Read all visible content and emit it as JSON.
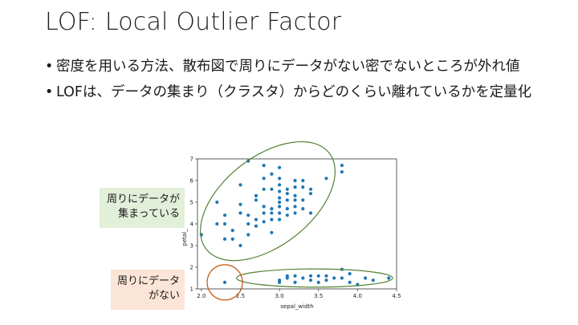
{
  "title": "LOF: Local Outlier Factor",
  "bullets": [
    "密度を用いる方法、散布図で周りにデータがない密でないところが外れ値",
    "LOFは、データの集まり（クラスタ）からどのくらい離れているかを定量化"
  ],
  "callouts": {
    "dense": [
      "周りにデータが",
      "集まっている"
    ],
    "sparse": [
      "周りにデータ",
      "がない"
    ]
  },
  "colors": {
    "points": "#1f77b4",
    "cluster_ellipse": "#548235",
    "outlier_circle": "#c55a11",
    "callout_dense_bg": "#e2efd9",
    "callout_sparse_bg": "#fbe5d6"
  },
  "chart_data": {
    "type": "scatter",
    "xlabel": "sepal_width",
    "ylabel": "petal_",
    "xlim": [
      1.95,
      4.5
    ],
    "ylim": [
      1.0,
      7.0
    ],
    "xticks": [
      "2.0",
      "2.5",
      "3.0",
      "3.5",
      "4.0",
      "4.5"
    ],
    "xtick_values": [
      2.0,
      2.5,
      3.0,
      3.5,
      4.0,
      4.5
    ],
    "yticks": [
      "1",
      "2",
      "3",
      "4",
      "5",
      "6",
      "7"
    ],
    "ytick_values": [
      1,
      2,
      3,
      4,
      5,
      6,
      7
    ],
    "grid": false,
    "points": [
      [
        2.0,
        3.5
      ],
      [
        2.2,
        4.0
      ],
      [
        2.2,
        5.0
      ],
      [
        2.3,
        3.3
      ],
      [
        2.3,
        4.0
      ],
      [
        2.3,
        4.4
      ],
      [
        2.4,
        3.3
      ],
      [
        2.4,
        3.7
      ],
      [
        2.5,
        3.0
      ],
      [
        2.5,
        4.5
      ],
      [
        2.5,
        4.9
      ],
      [
        2.5,
        5.8
      ],
      [
        2.6,
        3.5
      ],
      [
        2.6,
        4.0
      ],
      [
        2.6,
        4.4
      ],
      [
        2.6,
        6.9
      ],
      [
        2.7,
        3.9
      ],
      [
        2.7,
        4.2
      ],
      [
        2.7,
        5.1
      ],
      [
        2.7,
        5.3
      ],
      [
        2.8,
        4.1
      ],
      [
        2.8,
        4.5
      ],
      [
        2.8,
        4.8
      ],
      [
        2.8,
        5.6
      ],
      [
        2.8,
        6.1
      ],
      [
        2.8,
        6.7
      ],
      [
        2.9,
        3.6
      ],
      [
        2.9,
        4.2
      ],
      [
        2.9,
        4.5
      ],
      [
        2.9,
        4.7
      ],
      [
        2.9,
        5.6
      ],
      [
        2.9,
        6.3
      ],
      [
        3.0,
        4.2
      ],
      [
        3.0,
        4.5
      ],
      [
        3.0,
        4.8
      ],
      [
        3.0,
        5.0
      ],
      [
        3.0,
        5.2
      ],
      [
        3.0,
        5.5
      ],
      [
        3.0,
        5.8
      ],
      [
        3.0,
        6.1
      ],
      [
        3.0,
        6.6
      ],
      [
        3.1,
        4.4
      ],
      [
        3.1,
        4.7
      ],
      [
        3.1,
        5.1
      ],
      [
        3.1,
        5.4
      ],
      [
        3.1,
        5.6
      ],
      [
        3.2,
        4.5
      ],
      [
        3.2,
        4.8
      ],
      [
        3.2,
        5.1
      ],
      [
        3.2,
        5.3
      ],
      [
        3.2,
        5.7
      ],
      [
        3.2,
        6.0
      ],
      [
        3.3,
        4.7
      ],
      [
        3.3,
        5.1
      ],
      [
        3.3,
        5.7
      ],
      [
        3.3,
        6.0
      ],
      [
        3.4,
        4.5
      ],
      [
        3.4,
        5.4
      ],
      [
        3.4,
        5.6
      ],
      [
        3.6,
        6.1
      ],
      [
        3.8,
        6.4
      ],
      [
        3.8,
        6.7
      ],
      [
        2.3,
        1.3
      ],
      [
        3.0,
        1.3
      ],
      [
        3.0,
        1.4
      ],
      [
        3.1,
        1.5
      ],
      [
        3.1,
        1.6
      ],
      [
        3.2,
        1.3
      ],
      [
        3.2,
        1.6
      ],
      [
        3.3,
        1.5
      ],
      [
        3.4,
        1.4
      ],
      [
        3.4,
        1.6
      ],
      [
        3.5,
        1.3
      ],
      [
        3.5,
        1.6
      ],
      [
        3.6,
        1.4
      ],
      [
        3.6,
        1.6
      ],
      [
        3.7,
        1.5
      ],
      [
        3.8,
        1.5
      ],
      [
        3.8,
        1.9
      ],
      [
        3.9,
        1.3
      ],
      [
        3.9,
        1.7
      ],
      [
        4.0,
        1.2
      ],
      [
        4.1,
        1.5
      ],
      [
        4.2,
        1.4
      ],
      [
        4.4,
        1.5
      ]
    ],
    "annotations": {
      "dense_cluster_ellipse": {
        "cx": 2.85,
        "cy": 5.05,
        "rx_units": 1.0,
        "ry_units": 2.05
      },
      "tight_cluster_ellipse": {
        "cx": 3.45,
        "cy": 1.5,
        "rx_units": 1.0,
        "ry_units": 0.42
      },
      "outlier_circle": {
        "cx": 2.3,
        "cy": 1.3
      }
    }
  }
}
